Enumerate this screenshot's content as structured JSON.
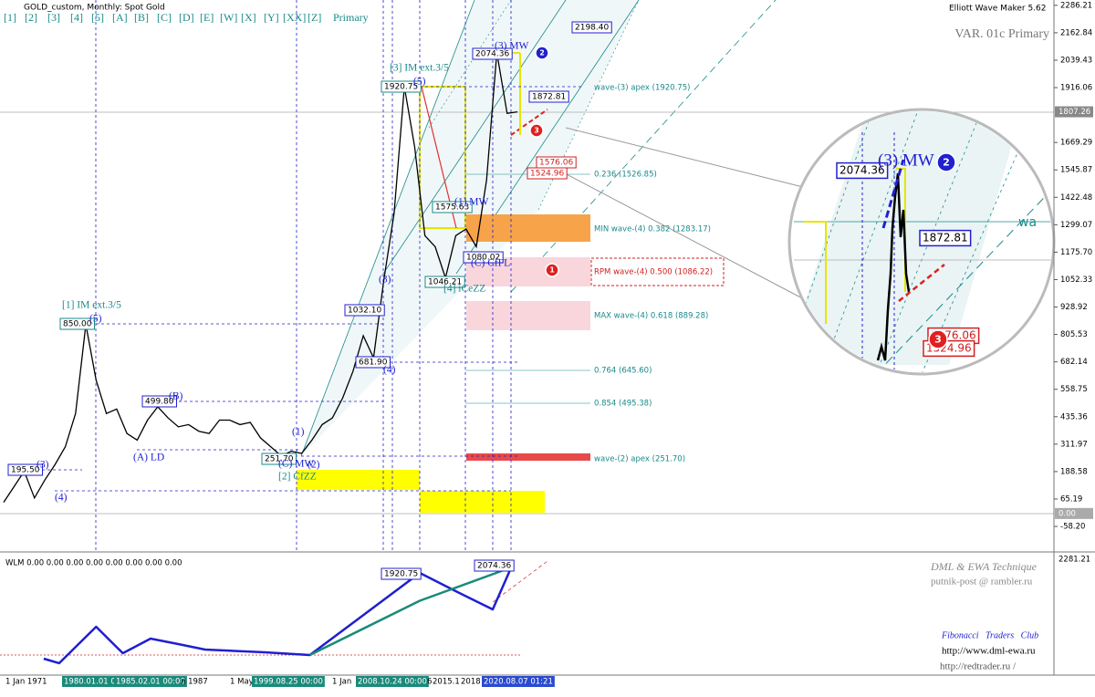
{
  "header": {
    "symbol": "GOLD_custom, Monthly:  Spot Gold",
    "indicator_name": "Elliott Wave Maker 5.62",
    "variant": "VAR. 01c Primary"
  },
  "toolbar": {
    "buttons": [
      "[1]",
      "[2]",
      "[3]",
      "[4]",
      "[5]",
      "[A]",
      "[B]",
      "[C]",
      "[D]",
      "[E]",
      "[W]",
      "[X]",
      "[Y]",
      "[XX]",
      "[Z]"
    ],
    "mode": "Primary"
  },
  "price_axis": {
    "ylim": [
      -173,
      2302
    ],
    "ticks": [
      2286.21,
      2162.84,
      2039.43,
      1916.06,
      1669.29,
      1545.87,
      1422.48,
      1299.07,
      {
        "value": 1175.7,
        "label": "1175.70"
      },
      1052.33,
      928.92,
      805.53,
      682.14,
      558.75,
      435.36,
      311.97,
      188.58,
      65.19,
      {
        "value": -58.2,
        "label": "-58.20"
      }
    ],
    "current": {
      "value": 1807.26,
      "label": "1807.26"
    },
    "zero": {
      "value": 0,
      "label": "0.00"
    }
  },
  "price_line": {
    "x": [
      1971,
      1972,
      1973,
      1974,
      1975,
      1976,
      1977,
      1978,
      1979,
      1980,
      1981,
      1982,
      1983,
      1984,
      1985,
      1986,
      1987,
      1988,
      1989,
      1990,
      1991,
      1992,
      1993,
      1994,
      1995,
      1996,
      1997,
      1998,
      1999,
      2000,
      2001,
      2002,
      2003,
      2004,
      2005,
      2006,
      2007,
      2008,
      2009,
      2010,
      2011,
      2012,
      2013,
      2014,
      2015,
      2016,
      2017,
      2018,
      2019,
      2020,
      2021
    ],
    "values": [
      50,
      120,
      190,
      70,
      150,
      220,
      300,
      450,
      850,
      600,
      450,
      470,
      360,
      330,
      420,
      480,
      430,
      390,
      400,
      370,
      360,
      420,
      420,
      400,
      410,
      340,
      300,
      260,
      280,
      270,
      330,
      400,
      430,
      520,
      640,
      800,
      700,
      1050,
      1350,
      1920,
      1650,
      1250,
      1200,
      1060,
      1250,
      1280,
      1200,
      1500,
      2074,
      1800,
      1807
    ]
  },
  "time_axis": {
    "labels": [
      "1 Jan 1971",
      "1980.01.01 00:00",
      "1985.02.01 00:00",
      "n 1987",
      "1 May 1992",
      "1999.08.25 00:00",
      "1 Jan",
      "2008.10.24 00:00",
      "6",
      "2015.1",
      "2018",
      "2020.08.07 01:21"
    ]
  },
  "price_boxes": [
    "2198.40",
    "2074.36",
    "1920.75",
    "1872.81",
    "1576.06",
    "1524.96",
    "1575.63",
    "1032.10",
    "1046.21",
    "1080.02",
    "850.00",
    "681.90",
    "499.80",
    "251.70",
    "195.50"
  ],
  "wave_labels": [
    "[1] IM ext.3/5",
    "(5)",
    "[3] IM ext.3/5",
    "(5)",
    "(3) MW",
    "(1) MW",
    "(3)",
    "(4)",
    "(B)",
    "(A) LD",
    "(1)",
    "(C) MW",
    "(2)",
    "[2] CfZZ",
    "(3)",
    "(4)",
    "[4] iCeZZ",
    "(C) CfFL"
  ],
  "fib_levels": [
    "wave-(3) apex (1920.75)",
    "0.236 (1526.85)",
    "MIN wave-(4) 0.382 (1283.17)",
    "RPM wave-(4) 0.500 (1086.22)",
    "MAX wave-(4) 0.618 (889.28)",
    "0.764 (645.60)",
    "0.854 (495.38)",
    "wave-(2) apex (251.70)"
  ],
  "markers": [
    "1",
    "2",
    "3"
  ],
  "magnifier": {
    "boxes": [
      "2074.36",
      "1872.81",
      "1576.06",
      "1524.96"
    ],
    "wave": "(3) MW",
    "markers": [
      "2",
      "3"
    ],
    "edge_label": "wa"
  },
  "indicator": {
    "title": "WLM 0.00 0.00 0.00 0.00 0.00 0.00 0.00 0.00",
    "axis_label": "2281.21",
    "ylim": [
      -200,
      2300
    ],
    "boxes": [
      "1920.75",
      "2074.36"
    ],
    "series": [
      {
        "color": "#1f1fd0",
        "x": [
          1974.9,
          1976.4,
          1980,
          1982.6,
          1985.3,
          1988,
          1990.6,
          1996.4,
          2000.8,
          2011.5,
          2015,
          2018.6,
          2020.4
        ],
        "values": [
          64,
          -37,
          775,
          186,
          511,
          390,
          267,
          206,
          145,
          1975,
          1568,
          1162,
          2097
        ]
      },
      {
        "color": "#1a8a7a",
        "x": [
          2000.8,
          2011.5,
          2020.4
        ],
        "values": [
          145,
          1355,
          2097
        ]
      }
    ]
  },
  "credits": {
    "technique": "DML & EWA Technique",
    "email": "putnik-post @ rambler.ru",
    "club": "Fibonacci   Traders   Club",
    "site1": "http://www.dml-ewa.ru",
    "site2": "http://redtrader.ru /"
  }
}
